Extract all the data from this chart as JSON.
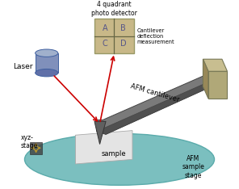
{
  "bg_color": "#ffffff",
  "stage_color": "#7bbfbf",
  "stage_edge": "#5aabab",
  "sample_color": "#e8e8e8",
  "sample_edge": "#bbbbbb",
  "cantilever_color": "#7a7a7a",
  "cantilever_dark": "#555555",
  "cantilever_edge": "#444444",
  "tip_color": "#606060",
  "holder_face": "#b0a878",
  "holder_top": "#c8be90",
  "holder_side": "#988858",
  "laser_top": "#a0b0cc",
  "laser_body": "#8090bb",
  "laser_bottom": "#6070a8",
  "laser_edge": "#4060a0",
  "detector_bg": "#c8b888",
  "detector_edge": "#999966",
  "arrow_color": "#cc0000",
  "xyz_arrow": "#b8962e",
  "text_color": "#000000",
  "label_detector": "4 quadrant\nphoto detector",
  "label_cantilever": "AFM cantilever",
  "label_stage": "AFM\nsample\nstage",
  "label_sample": "sample",
  "label_xyz": "xyz-\nstage",
  "label_laser": "Laser",
  "label_measure": "Cantilever\ndeflection\nmeasurement",
  "quadrant_labels": [
    "A",
    "B",
    "C",
    "D"
  ]
}
